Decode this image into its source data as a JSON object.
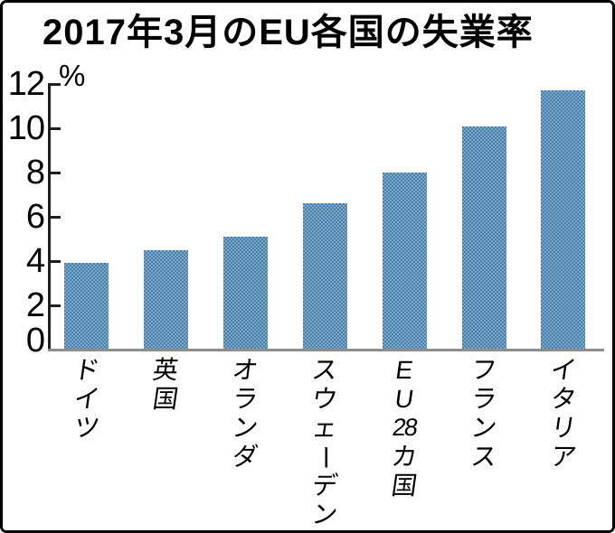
{
  "chart_data": {
    "type": "bar",
    "title": "2017年3月のEU各国の失業率",
    "unit_label": "%",
    "xlabel": "",
    "ylabel": "%",
    "categories": [
      "ドイツ",
      "英国",
      "オランダ",
      "スウェーデン",
      "EU28カ国",
      "フランス",
      "イタリア"
    ],
    "category_cells": [
      [
        "ド",
        "イ",
        "ツ"
      ],
      [
        "英",
        "国"
      ],
      [
        "オ",
        "ラ",
        "ン",
        "ダ"
      ],
      [
        "ス",
        "ウ",
        "ェ",
        "ー",
        "デ",
        "ン"
      ],
      [
        "E",
        "U",
        "28",
        "カ",
        "国"
      ],
      [
        "フ",
        "ラ",
        "ン",
        "ス"
      ],
      [
        "イ",
        "タ",
        "リ",
        "ア"
      ]
    ],
    "values": [
      3.9,
      4.5,
      5.1,
      6.6,
      8.0,
      10.1,
      11.7
    ],
    "ylim": [
      0,
      12
    ],
    "ytick_step": 2,
    "yticks": [
      0,
      2,
      4,
      6,
      8,
      10,
      12
    ],
    "grid": false,
    "legend_position": "none"
  },
  "colors": {
    "bar_light": "#79abce",
    "bar_dark": "#4a7ca4",
    "y_axis": "#1f1f1f",
    "x_axis_baseline": "#8d8d8d",
    "text": "#000000",
    "frame_border": "#000000",
    "background": "#ffffff"
  }
}
